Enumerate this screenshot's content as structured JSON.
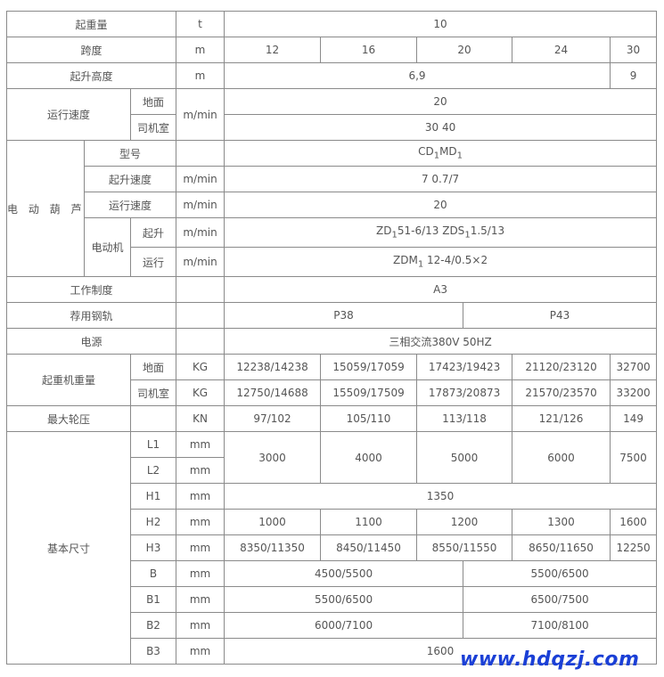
{
  "rows": {
    "capacity": {
      "label": "起重量",
      "unit": "t",
      "value": "10"
    },
    "span": {
      "label": "跨度",
      "unit": "m",
      "values": [
        "12",
        "16",
        "20",
        "24",
        "30"
      ]
    },
    "lift_height": {
      "label": "起升高度",
      "unit": "m",
      "values": [
        "6,9",
        "9"
      ]
    },
    "travel_speed": {
      "label": "运行速度",
      "unit": "m/min",
      "ground": {
        "label": "地面",
        "value": "20"
      },
      "cab": {
        "label": "司机室",
        "value": "30 40"
      }
    },
    "hoist": {
      "label": "电 动 葫 芦",
      "model": {
        "label": "型号",
        "value_main": "CD",
        "sub1": "1",
        "mid": "MD",
        "sub2": "1"
      },
      "lift_speed": {
        "label": "起升速度",
        "unit": "m/min",
        "value": "7 0.7/7"
      },
      "run_speed": {
        "label": "运行速度",
        "unit": "m/min",
        "value": "20"
      },
      "motor": {
        "label": "电动机",
        "lift": {
          "label": "起升",
          "unit": "m/min",
          "a": "ZD",
          "a_sub": "1",
          "b": "51-6/13 ZDS",
          "b_sub": "1",
          "c": "1.5/13"
        },
        "run": {
          "label": "运行",
          "unit": "m/min",
          "a": "ZDM",
          "a_sub": "1",
          "b": " 12-4/0.5×2"
        }
      }
    },
    "duty": {
      "label": "工作制度",
      "value": "A3"
    },
    "rail": {
      "label": "荐用钢轨",
      "values": [
        "P38",
        "P43"
      ]
    },
    "power": {
      "label": "电源",
      "value": "三相交流380V 50HZ"
    },
    "weight": {
      "label": "起重机重量",
      "ground": {
        "label": "地面",
        "unit": "KG",
        "values": [
          "12238/14238",
          "15059/17059",
          "17423/19423",
          "21120/23120",
          "32700"
        ]
      },
      "cab": {
        "label": "司机室",
        "unit": "KG",
        "values": [
          "12750/14688",
          "15509/17509",
          "17873/20873",
          "21570/23570",
          "33200"
        ]
      }
    },
    "wheel_load": {
      "label": "最大轮压",
      "unit": "KN",
      "values": [
        "97/102",
        "105/110",
        "113/118",
        "121/126",
        "149"
      ]
    },
    "dims": {
      "label": "基本尺寸",
      "L1": {
        "label": "L1",
        "unit": "mm"
      },
      "L2": {
        "label": "L2",
        "unit": "mm"
      },
      "L": {
        "values": [
          "3000",
          "4000",
          "5000",
          "6000",
          "7500"
        ]
      },
      "H1": {
        "label": "H1",
        "unit": "mm",
        "value": "1350"
      },
      "H2": {
        "label": "H2",
        "unit": "mm",
        "values": [
          "1000",
          "1100",
          "1200",
          "1300",
          "1600"
        ]
      },
      "H3": {
        "label": "H3",
        "unit": "mm",
        "values": [
          "8350/11350",
          "8450/11450",
          "8550/11550",
          "8650/11650",
          "12250"
        ]
      },
      "B": {
        "label": "B",
        "unit": "mm",
        "values": [
          "4500/5500",
          "5500/6500"
        ]
      },
      "B1": {
        "label": "B1",
        "unit": "mm",
        "values": [
          "5500/6500",
          "6500/7500"
        ]
      },
      "B2": {
        "label": "B2",
        "unit": "mm",
        "values": [
          "6000/7100",
          "7100/8100"
        ]
      },
      "B3": {
        "label": "B3",
        "unit": "mm",
        "value": "1600"
      }
    }
  },
  "watermark": "www.hdqzj.com"
}
